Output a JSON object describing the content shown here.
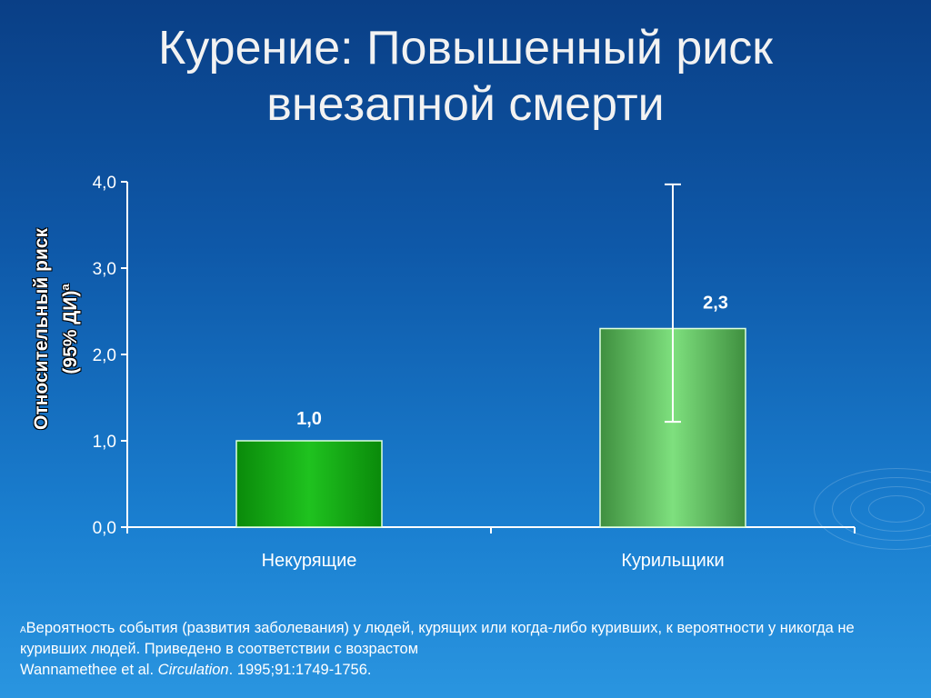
{
  "slide": {
    "title_line1": "Курение: Повышенный риск",
    "title_line2": "внезапной смерти"
  },
  "chart_data": {
    "type": "bar",
    "categories": [
      "Некурящие",
      "Курильщики"
    ],
    "values": [
      1.0,
      2.3
    ],
    "value_labels": [
      "1,0",
      "2,3"
    ],
    "error_bars": [
      null,
      {
        "low": 1.22,
        "high": 3.97
      }
    ],
    "ylabel_line1": "Относительный риск",
    "ylabel_line2": "(95% ДИ)",
    "ylabel_superscript": "a",
    "ylim": [
      0,
      4
    ],
    "yticks": [
      0,
      1,
      2,
      3,
      4
    ],
    "ytick_labels": [
      "0,0",
      "1,0",
      "2,0",
      "3,0",
      "4,0"
    ],
    "bar_colors": [
      "#1fc21f",
      "#7ee07e"
    ]
  },
  "footnote": {
    "marker": "A",
    "text_part1": "Вероятность события (развития заболевания) у людей, курящих или когда-либо куривших, к вероятности у никогда не куривших людей. Приведено в соответствии с возрастом",
    "text_part2": " Wannamethee et al. ",
    "journal": "Circulation",
    "citation": ". 1995;91:1749-1756."
  }
}
